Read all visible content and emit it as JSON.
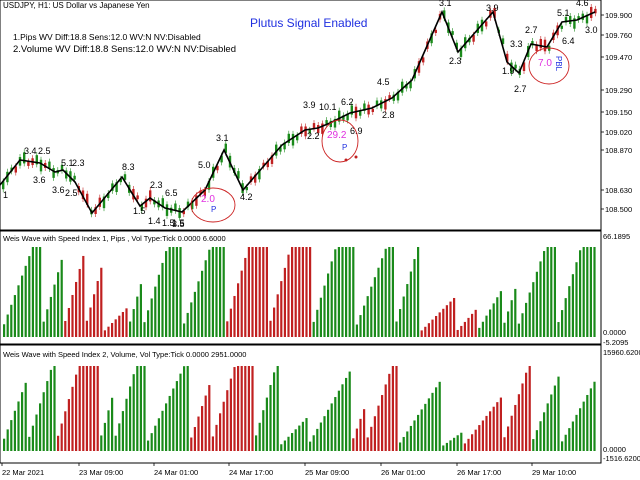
{
  "header": {
    "symbol_line": "USDJPY, H1:  US Dollar vs Japanese Yen",
    "banner": "Plutus Signal Enabled",
    "info_line_1": "1.Pips      WV Diff:18.8 Sens:12.0 WV:N NV:Disabled",
    "info_line_2": "2.Volume WV Diff:18.8 Sens:12.0 WV:N NV:Disabled"
  },
  "main_pane": {
    "price_labels": [
      "109.900",
      "109.760",
      "109.470",
      "109.290",
      "109.150",
      "109.020",
      "108.870",
      "108.630",
      "108.500"
    ],
    "wave_labels": [
      "1",
      "3.4",
      "2.5",
      "3.6",
      "3.6",
      "5.1",
      "2.3",
      "2.5",
      "8.3",
      "1.5",
      "2.3",
      "1.4",
      "1.5",
      "1.5",
      "3.5",
      "6.5",
      "5.0",
      "3.1",
      "4.2",
      "3.9",
      "2.2",
      "10.1",
      "6.2",
      "6.9",
      "4.5",
      "2.8",
      "3.1",
      "2.3",
      "3.9",
      "1.9",
      "3.3",
      "2.7",
      "2.7",
      "5.1",
      "6.4",
      "4.6",
      "3.0"
    ],
    "signals": [
      {
        "value": "2.0",
        "tag": "P"
      },
      {
        "value": "29.2",
        "tag": "P"
      },
      {
        "value": "7.0",
        "tag": "PBL"
      }
    ]
  },
  "indicator_1": {
    "title": "Weis Wave with Speed Index 1, Pips      , Vol Type:Tick 0.0000 6.6000",
    "scale_top": "66.1895",
    "scale_bottom": "-5.2095",
    "scale_zero": "0.0000"
  },
  "indicator_2": {
    "title": "Weis Wave with Speed Index 2, Volume, Vol Type:Tick 0.0000 2951.0000",
    "scale_top": "15960.6200",
    "scale_zero": "0.0000",
    "scale_bottom": "-1516.6200"
  },
  "time_axis": [
    "22 Mar 2021",
    "23 Mar 09:00",
    "24 Mar 01:00",
    "24 Mar 17:00",
    "25 Mar 09:00",
    "26 Mar 01:00",
    "26 Mar 17:00",
    "29 Mar 10:00"
  ],
  "colors": {
    "up": "#1a8a1a",
    "down": "#c02020",
    "line": "#000000",
    "banner": "#1f2fe0",
    "signal": "#e030e0"
  }
}
